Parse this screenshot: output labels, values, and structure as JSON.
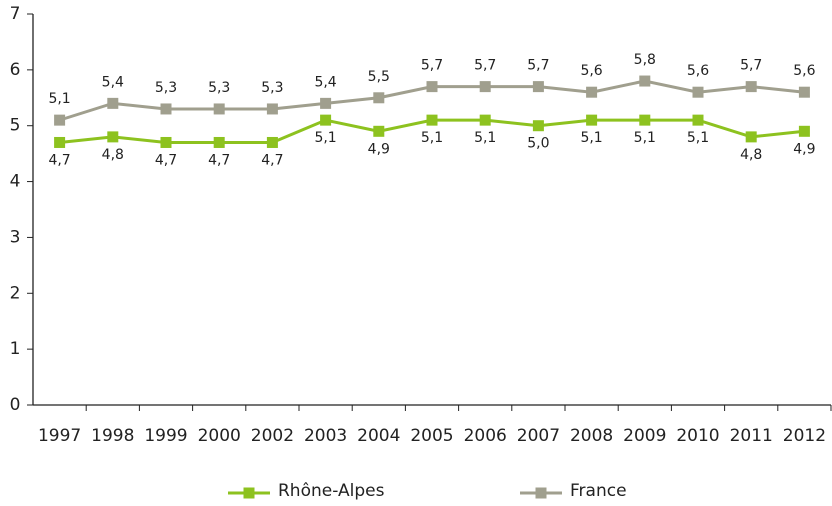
{
  "chart_data": {
    "type": "line",
    "categories": [
      "1997",
      "1998",
      "1999",
      "2000",
      "2002",
      "2003",
      "2004",
      "2005",
      "2006",
      "2007",
      "2008",
      "2009",
      "2010",
      "2011",
      "2012"
    ],
    "series": [
      {
        "name": "Rhône-Alpes",
        "color": "#8dc21f",
        "values": [
          4.7,
          4.8,
          4.7,
          4.7,
          4.7,
          5.1,
          4.9,
          5.1,
          5.1,
          5.0,
          5.1,
          5.1,
          5.1,
          4.8,
          4.9
        ],
        "value_labels": [
          "4,7",
          "4,8",
          "4,7",
          "4,7",
          "4,7",
          "5,1",
          "4,9",
          "5,1",
          "5,1",
          "5,0",
          "5,1",
          "5,1",
          "5,1",
          "4,8",
          "4,9"
        ]
      },
      {
        "name": "France",
        "color": "#a09f8e",
        "values": [
          5.1,
          5.4,
          5.3,
          5.3,
          5.3,
          5.4,
          5.5,
          5.7,
          5.7,
          5.7,
          5.6,
          5.8,
          5.6,
          5.7,
          5.6
        ],
        "value_labels": [
          "5,1",
          "5,4",
          "5,3",
          "5,3",
          "5,3",
          "5,4",
          "5,5",
          "5,7",
          "5,7",
          "5,7",
          "5,6",
          "5,8",
          "5,6",
          "5,7",
          "5,6"
        ]
      }
    ],
    "ylim": [
      0,
      7
    ],
    "yticks": [
      0,
      1,
      2,
      3,
      4,
      5,
      6,
      7
    ],
    "grid": false,
    "legend": "bottom"
  }
}
